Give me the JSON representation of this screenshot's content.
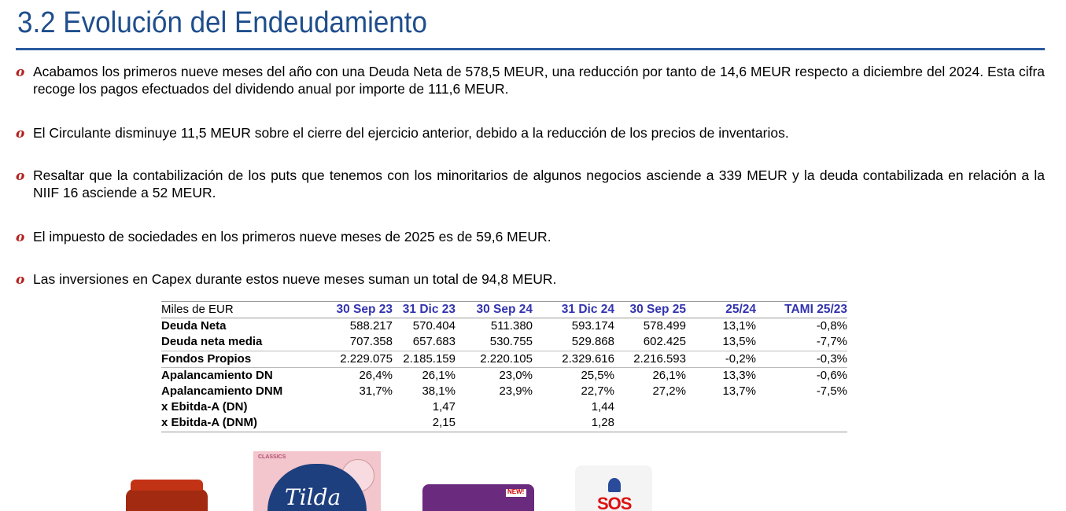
{
  "title": "3.2 Evolución del Endeudamiento",
  "bullets": [
    "Acabamos los primeros nueve meses del año con una Deuda Neta de 578,5 MEUR, una reducción por tanto de 14,6 MEUR respecto a diciembre del 2024. Esta cifra recoge los pagos efectuados del dividendo anual por importe de 111,6 MEUR.",
    "El Circulante disminuye 11,5 MEUR sobre el cierre del ejercicio anterior, debido a la reducción de los precios de inventarios.",
    "Resaltar que la contabilización de los puts que tenemos con los minoritarios de algunos negocios asciende a 339 MEUR y la deuda contabilizada en relación a la NIIF 16 asciende a 52 MEUR.",
    "El impuesto de sociedades en los primeros nueve meses de 2025 es de 59,6 MEUR.",
    "Las inversiones en Capex durante estos nueve meses suman un total de 94,8 MEUR."
  ],
  "bullet_marker": "o",
  "colors": {
    "title": "#1f4e8c",
    "bullet_marker": "#b3201c",
    "table_header": "#3333b0"
  },
  "table": {
    "unit_label": "Miles de EUR",
    "headers": [
      "30 Sep 23",
      "31 Dic 23",
      "30 Sep 24",
      "31 Dic 24",
      "30 Sep 25",
      "25/24",
      "TAMI 25/23"
    ],
    "rows": [
      {
        "label": "Deuda Neta",
        "values": [
          "588.217",
          "570.404",
          "511.380",
          "593.174",
          "578.499",
          "13,1%",
          "-0,8%"
        ]
      },
      {
        "label": "Deuda neta media",
        "values": [
          "707.358",
          "657.683",
          "530.755",
          "529.868",
          "602.425",
          "13,5%",
          "-7,7%"
        ]
      },
      {
        "label": "Fondos Propios",
        "values": [
          "2.229.075",
          "2.185.159",
          "2.220.105",
          "2.329.616",
          "2.216.593",
          "-0,2%",
          "-0,3%"
        ]
      },
      {
        "label": "Apalancamiento DN",
        "values": [
          "26,4%",
          "26,1%",
          "23,0%",
          "25,5%",
          "26,1%",
          "13,3%",
          "-0,6%"
        ]
      },
      {
        "label": "Apalancamiento DNM",
        "values": [
          "31,7%",
          "38,1%",
          "23,9%",
          "22,7%",
          "27,2%",
          "13,7%",
          "-7,5%"
        ]
      },
      {
        "label": "x Ebitda-A (DN)",
        "values": [
          "",
          "1,47",
          "",
          "1,44",
          "",
          "",
          ""
        ]
      },
      {
        "label": "x Ebitda-A (DNM)",
        "values": [
          "",
          "2,15",
          "",
          "1,28",
          "",
          "",
          ""
        ]
      }
    ]
  },
  "products": {
    "tilda_brand": "Tilda",
    "tilda_tag": "CLASSICS",
    "purple_badge": "NEW!",
    "sos_brand": "SOS"
  }
}
